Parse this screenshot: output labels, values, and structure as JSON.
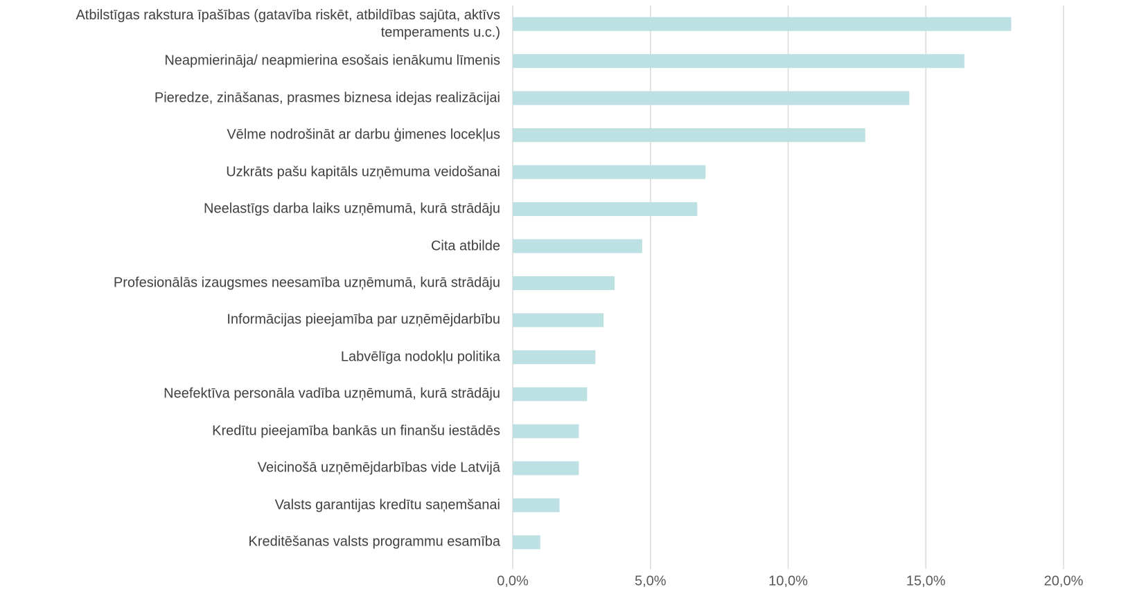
{
  "chart_data": {
    "type": "bar",
    "orientation": "horizontal",
    "categories": [
      "Atbilstīgas rakstura īpašības (gatavība riskēt, atbildības sajūta, aktīvs temperaments u.c.)",
      "Neapmierināja/ neapmierina esošais ienākumu līmenis",
      "Pieredze, zināšanas, prasmes biznesa idejas realizācijai",
      "Vēlme nodrošināt ar darbu ģimenes locekļus",
      "Uzkrāts pašu kapitāls uzņēmuma veidošanai",
      "Neelastīgs darba laiks uzņēmumā, kurā strādāju",
      "Cita atbilde",
      "Profesionālās izaugsmes neesamība uzņēmumā, kurā strādāju",
      "Informācijas pieejamība par uzņēmējdarbību",
      "Labvēlīga nodokļu politika",
      "Neefektīva personāla vadība uzņēmumā, kurā strādāju",
      "Kredītu pieejamība bankās un finanšu iestādēs",
      "Veicinošā uzņēmējdarbības vide Latvijā",
      "Valsts garantijas kredītu saņemšanai",
      "Kreditēšanas valsts programmu esamība"
    ],
    "values": [
      18.1,
      16.4,
      14.4,
      12.8,
      7.0,
      6.7,
      4.7,
      3.7,
      3.3,
      3.0,
      2.7,
      2.4,
      2.4,
      1.7,
      1.0
    ],
    "color": "#bde0e3",
    "xlim": [
      0,
      20
    ],
    "xticks": [
      {
        "value": 0,
        "label": "0,0%"
      },
      {
        "value": 5,
        "label": "5,0%"
      },
      {
        "value": 10,
        "label": "10,0%"
      },
      {
        "value": 15,
        "label": "15,0%"
      },
      {
        "value": 20,
        "label": "20,0%"
      }
    ],
    "grid": true
  }
}
